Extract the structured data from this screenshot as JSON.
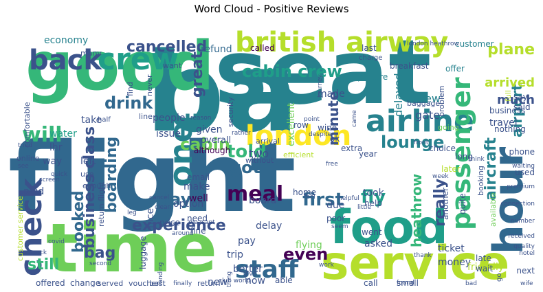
{
  "title": "Word Cloud - Positive Reviews",
  "palette": {
    "dark_purple": "#440154",
    "indigo": "#3b528b",
    "slate_blue": "#31688e",
    "teal_blue": "#26828e",
    "teal": "#1f9e89",
    "green": "#35b779",
    "light_green": "#6ece58",
    "lime": "#b5de2b",
    "yellow": "#fde725"
  },
  "words": [
    {
      "text": "flight",
      "color": "#31688e"
    },
    {
      "text": "seat",
      "color": "#26828e"
    },
    {
      "text": "ba",
      "color": "#26828e"
    },
    {
      "text": "good",
      "color": "#35b779"
    },
    {
      "text": "time",
      "color": "#6ece58"
    },
    {
      "text": "service",
      "color": "#b5de2b"
    },
    {
      "text": "food",
      "color": "#1f9e89"
    },
    {
      "text": "british airway",
      "color": "#b5de2b"
    },
    {
      "text": "hour",
      "color": "#31688e"
    },
    {
      "text": "crew",
      "color": "#1f9e89"
    },
    {
      "text": "back",
      "color": "#3b528b"
    },
    {
      "text": "check",
      "color": "#3b528b"
    },
    {
      "text": "one",
      "color": "#26828e"
    },
    {
      "text": "airline",
      "color": "#26828e"
    },
    {
      "text": "london",
      "color": "#fde725"
    },
    {
      "text": "passenger",
      "color": "#35b779"
    },
    {
      "text": "staff",
      "color": "#31688e"
    },
    {
      "text": "cancelled",
      "color": "#3b528b"
    },
    {
      "text": "u",
      "color": "#26828e"
    },
    {
      "text": "plane",
      "color": "#b5de2b"
    },
    {
      "text": "cabin crew",
      "color": "#1f9e89"
    },
    {
      "text": "drink",
      "color": "#31688e"
    },
    {
      "text": "business class",
      "color": "#3b528b"
    },
    {
      "text": "will",
      "color": "#35b779"
    },
    {
      "text": "told",
      "color": "#35b779"
    },
    {
      "text": "cabin",
      "color": "#6ece58"
    },
    {
      "text": "booked",
      "color": "#31688e"
    },
    {
      "text": "boarding",
      "color": "#31688e"
    },
    {
      "text": "day",
      "color": "#31688e"
    },
    {
      "text": "got",
      "color": "#31688e"
    },
    {
      "text": "meal",
      "color": "#440154"
    },
    {
      "text": "first",
      "color": "#31688e"
    },
    {
      "text": "fly",
      "color": "#1f9e89"
    },
    {
      "text": "lounge",
      "color": "#26828e"
    },
    {
      "text": "minute",
      "color": "#3b528b"
    },
    {
      "text": "great",
      "color": "#3b528b"
    },
    {
      "text": "experience",
      "color": "#3b528b"
    },
    {
      "text": "even",
      "color": "#440154"
    },
    {
      "text": "bag",
      "color": "#3b528b"
    },
    {
      "text": "still",
      "color": "#35b779"
    },
    {
      "text": "really",
      "color": "#3b528b"
    },
    {
      "text": "heathrow",
      "color": "#35b779"
    },
    {
      "text": "aircraft",
      "color": "#26828e"
    },
    {
      "text": "airport",
      "color": "#26828e"
    },
    {
      "text": "arrived",
      "color": "#b5de2b"
    },
    {
      "text": "much",
      "color": "#3b528b"
    },
    {
      "text": "refund",
      "color": "#31688e"
    },
    {
      "text": "economy",
      "color": "#26828e"
    },
    {
      "text": "last",
      "color": "#3b528b"
    },
    {
      "text": "called",
      "color": "#440154"
    },
    {
      "text": "customer",
      "color": "#26828e"
    },
    {
      "text": "breakfast",
      "color": "#3b528b"
    },
    {
      "text": "departure",
      "color": "#26828e"
    },
    {
      "text": "offer",
      "color": "#26828e"
    },
    {
      "text": "delayed",
      "color": "#26828e"
    },
    {
      "text": "flew",
      "color": "#26828e"
    },
    {
      "text": "gate",
      "color": "#3b528b"
    },
    {
      "text": "made",
      "color": "#3b528b"
    },
    {
      "text": "excellent",
      "color": "#6ece58"
    },
    {
      "text": "take",
      "color": "#3b528b"
    },
    {
      "text": "issue",
      "color": "#3b528b"
    },
    {
      "text": "water",
      "color": "#1f9e89"
    },
    {
      "text": "lhr",
      "color": "#3b528b"
    },
    {
      "text": "way",
      "color": "#3b528b"
    },
    {
      "text": "left",
      "color": "#3b528b"
    },
    {
      "text": "paid",
      "color": "#3b528b"
    },
    {
      "text": "people",
      "color": "#3b528b"
    },
    {
      "text": "given",
      "color": "#3b528b"
    },
    {
      "text": "overall",
      "color": "#3b528b"
    },
    {
      "text": "although",
      "color": "#440154"
    },
    {
      "text": "two",
      "color": "#3b528b"
    },
    {
      "text": "board",
      "color": "#3b528b"
    },
    {
      "text": "make",
      "color": "#3b528b"
    },
    {
      "text": "well",
      "color": "#440154"
    },
    {
      "text": "option",
      "color": "#3b528b"
    },
    {
      "text": "nice",
      "color": "#3b528b"
    },
    {
      "text": "price",
      "color": "#3b528b"
    },
    {
      "text": "email",
      "color": "#3b528b"
    },
    {
      "text": "need",
      "color": "#3b528b"
    },
    {
      "text": "fine",
      "color": "#3b528b"
    },
    {
      "text": "delay",
      "color": "#3b528b"
    },
    {
      "text": "pay",
      "color": "#3b528b"
    },
    {
      "text": "trip",
      "color": "#3b528b"
    },
    {
      "text": "flying",
      "color": "#6ece58"
    },
    {
      "text": "asked",
      "color": "#3b528b"
    },
    {
      "text": "better",
      "color": "#3b528b"
    },
    {
      "text": "now",
      "color": "#3b528b"
    },
    {
      "text": "new",
      "color": "#3b528b"
    },
    {
      "text": "able",
      "color": "#3b528b"
    },
    {
      "text": "call",
      "color": "#3b528b"
    },
    {
      "text": "small",
      "color": "#3b528b"
    },
    {
      "text": "went",
      "color": "#3b528b"
    },
    {
      "text": "home",
      "color": "#3b528b"
    },
    {
      "text": "due",
      "color": "#3b528b"
    },
    {
      "text": "poor",
      "color": "#3b528b"
    },
    {
      "text": "took",
      "color": "#3b528b"
    },
    {
      "text": "help",
      "color": "#3b528b"
    },
    {
      "text": "ticket",
      "color": "#3b528b"
    },
    {
      "text": "money",
      "color": "#3b528b"
    },
    {
      "text": "friendly",
      "color": "#b5de2b"
    },
    {
      "text": "wait",
      "color": "#3b528b"
    },
    {
      "text": "late",
      "color": "#3b528b"
    },
    {
      "text": "next",
      "color": "#3b528b"
    },
    {
      "text": "another",
      "color": "#3b528b"
    },
    {
      "text": "quite",
      "color": "#3b528b"
    },
    {
      "text": "travel",
      "color": "#3b528b"
    },
    {
      "text": "business",
      "color": "#3b528b"
    },
    {
      "text": "nothing",
      "color": "#3b528b"
    },
    {
      "text": "said",
      "color": "#3b528b"
    },
    {
      "text": "say",
      "color": "#3b528b"
    },
    {
      "text": "phone",
      "color": "#3b528b"
    },
    {
      "text": "used",
      "color": "#3b528b"
    },
    {
      "text": "choice",
      "color": "#3b528b"
    },
    {
      "text": "long",
      "color": "#3b528b"
    },
    {
      "text": "later",
      "color": "#b5de2b"
    },
    {
      "text": "year",
      "color": "#3b528b"
    },
    {
      "text": "extra",
      "color": "#3b528b"
    },
    {
      "text": "wine",
      "color": "#3b528b"
    },
    {
      "text": "row",
      "color": "#3b528b"
    },
    {
      "text": "ok",
      "color": "#3b528b"
    },
    {
      "text": "arrival",
      "color": "#3b528b"
    },
    {
      "text": "efficient",
      "color": "#b5de2b"
    },
    {
      "text": "without",
      "color": "#3b528b"
    },
    {
      "text": "luggage",
      "color": "#3b528b"
    },
    {
      "text": "change",
      "color": "#3b528b"
    },
    {
      "text": "offered",
      "color": "#3b528b"
    },
    {
      "text": "served",
      "color": "#3b528b"
    },
    {
      "text": "voucher",
      "color": "#3b528b"
    },
    {
      "text": "best",
      "color": "#3b528b"
    },
    {
      "text": "return",
      "color": "#3b528b"
    },
    {
      "text": "return flight",
      "color": "#3b528b"
    },
    {
      "text": "customer service",
      "color": "#b5de2b"
    },
    {
      "text": "online",
      "color": "#3b528b"
    },
    {
      "text": "enough",
      "color": "#3b528b"
    },
    {
      "text": "comfortable",
      "color": "#3b528b"
    },
    {
      "text": "baggage",
      "color": "#3b528b"
    },
    {
      "text": "problem",
      "color": "#3b528b"
    },
    {
      "text": "security",
      "color": "#3b528b"
    },
    {
      "text": "full",
      "color": "#b5de2b"
    },
    {
      "text": "booking",
      "color": "#3b528b"
    },
    {
      "text": "available",
      "color": "#6ece58"
    },
    {
      "text": "going",
      "color": "#6ece58"
    },
    {
      "text": "find",
      "color": "#3b528b"
    },
    {
      "text": "never",
      "color": "#3b528b"
    },
    {
      "text": "line",
      "color": "#3b528b"
    },
    {
      "text": "use",
      "color": "#3b528b"
    },
    {
      "text": "many",
      "color": "#3b528b"
    },
    {
      "text": "want",
      "color": "#3b528b"
    },
    {
      "text": "london heathrow",
      "color": "#3b528b"
    },
    {
      "text": "charge",
      "color": "#3b528b"
    },
    {
      "text": "half",
      "color": "#3b528b"
    },
    {
      "text": "reason",
      "color": "#3b528b"
    },
    {
      "text": "point",
      "color": "#3b528b"
    },
    {
      "text": "came",
      "color": "#3b528b"
    },
    {
      "text": "think",
      "color": "#3b528b"
    },
    {
      "text": "quick",
      "color": "#3b528b"
    },
    {
      "text": "tried",
      "color": "#3b528b"
    },
    {
      "text": "see",
      "color": "#3b528b"
    },
    {
      "text": "rather",
      "color": "#3b528b"
    },
    {
      "text": "despite",
      "color": "#3b528b"
    },
    {
      "text": "free",
      "color": "#3b528b"
    },
    {
      "text": "front",
      "color": "#3b528b"
    },
    {
      "text": "journey",
      "color": "#3b528b"
    },
    {
      "text": "week",
      "color": "#3b528b"
    },
    {
      "text": "premium",
      "color": "#3b528b"
    },
    {
      "text": "connection",
      "color": "#3b528b"
    },
    {
      "text": "number",
      "color": "#3b528b"
    },
    {
      "text": "received",
      "color": "#3b528b"
    },
    {
      "text": "quality",
      "color": "#3b528b"
    },
    {
      "text": "hotel",
      "color": "#3b528b"
    },
    {
      "text": "wife",
      "color": "#3b528b"
    },
    {
      "text": "go",
      "color": "#3b528b"
    },
    {
      "text": "bad",
      "color": "#3b528b"
    },
    {
      "text": "found",
      "color": "#3b528b"
    },
    {
      "text": "thank",
      "color": "#3b528b"
    },
    {
      "text": "little",
      "color": "#3b528b"
    },
    {
      "text": "seem",
      "color": "#3b528b"
    },
    {
      "text": "helpful",
      "color": "#3b528b"
    },
    {
      "text": "feel",
      "color": "#3b528b"
    },
    {
      "text": "pleasant",
      "color": "#3b528b"
    },
    {
      "text": "clean",
      "color": "#3b528b"
    },
    {
      "text": "cancel",
      "color": "#3b528b"
    },
    {
      "text": "lot",
      "color": "#3b528b"
    },
    {
      "text": "around",
      "color": "#3b528b"
    },
    {
      "text": "leg",
      "color": "#3b528b"
    },
    {
      "text": "screen",
      "color": "#3b528b"
    },
    {
      "text": "second",
      "color": "#3b528b"
    },
    {
      "text": "landing",
      "color": "#3b528b"
    },
    {
      "text": "finally",
      "color": "#3b528b"
    },
    {
      "text": "club world",
      "color": "#3b528b"
    },
    {
      "text": "give",
      "color": "#3b528b"
    },
    {
      "text": "work",
      "color": "#3b528b"
    },
    {
      "text": "thing",
      "color": "#3b528b"
    },
    {
      "text": "snack",
      "color": "#3b528b"
    },
    {
      "text": "covid",
      "color": "#3b528b"
    },
    {
      "text": "waiting",
      "color": "#3b528b"
    }
  ]
}
